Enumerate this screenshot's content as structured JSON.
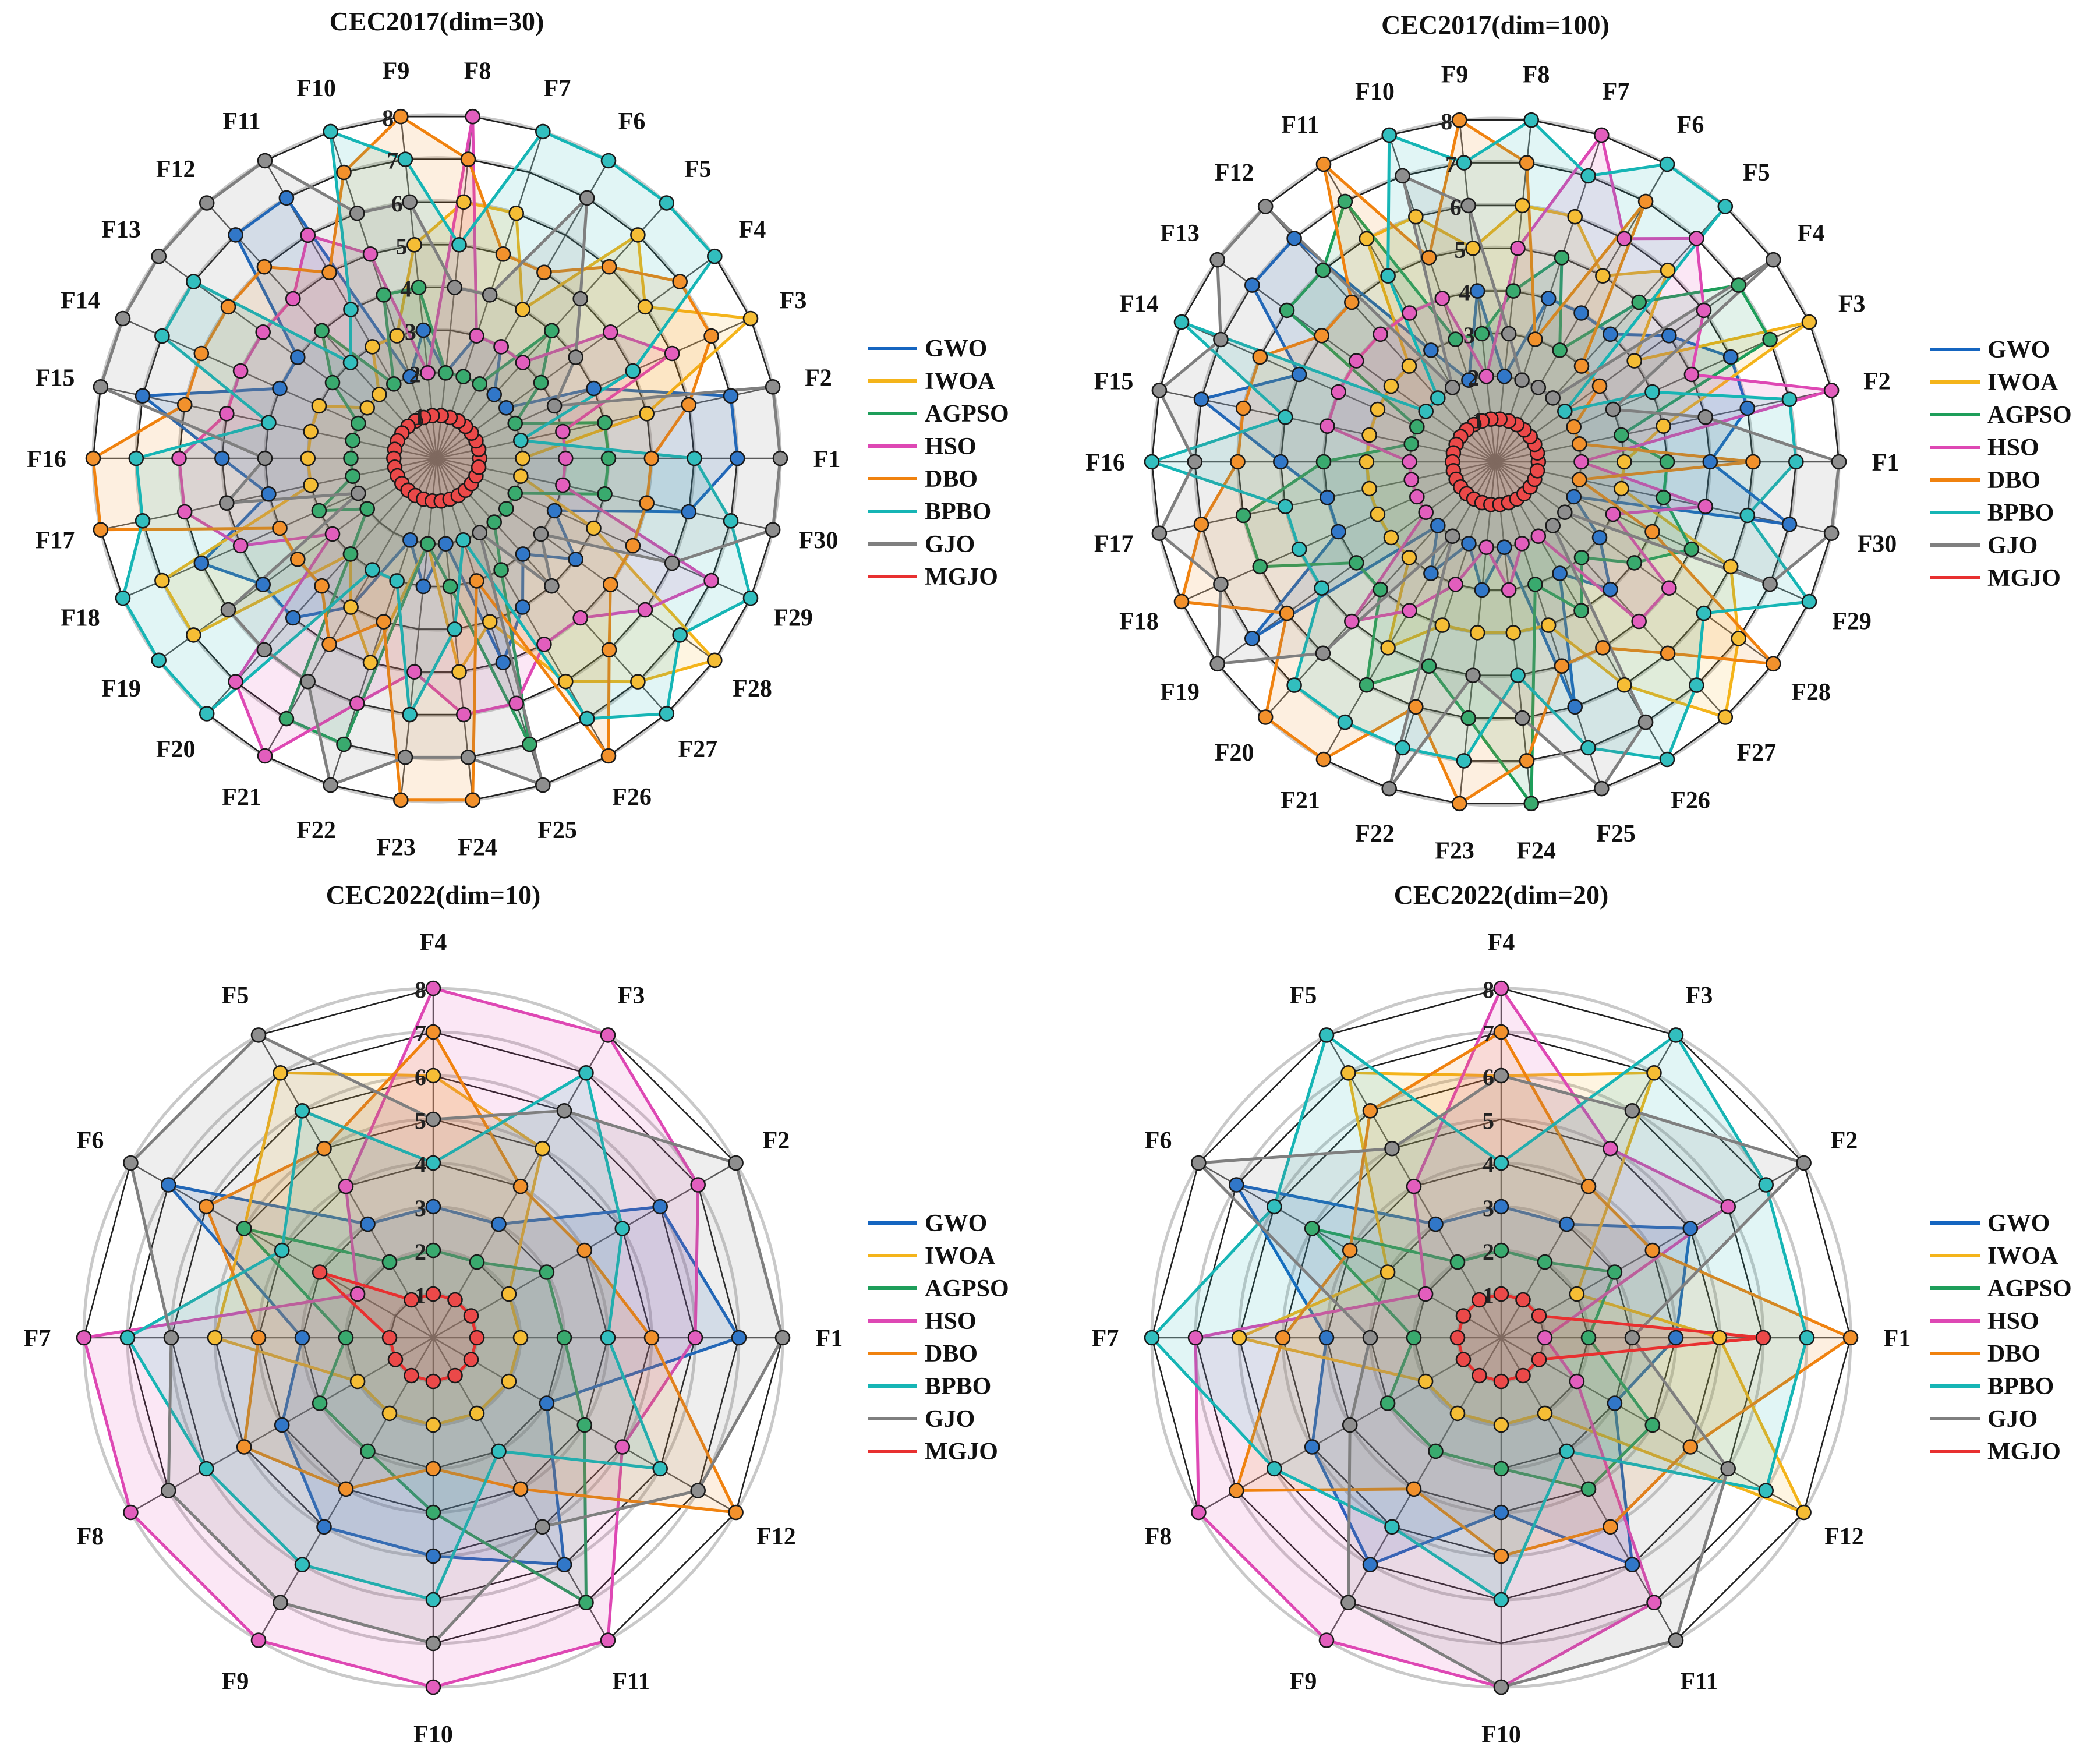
{
  "colors": {
    "GWO": "#1565c0",
    "IWOA": "#f4b41a",
    "AGPSO": "#1e9e5a",
    "HSO": "#de48b4",
    "DBO": "#f0820f",
    "BPBO": "#16b5b5",
    "GJO": "#7f7f7f",
    "MGJO": "#e83030"
  },
  "chart_data": [
    {
      "type": "radar",
      "title": "CEC2017(dim=30)",
      "rlim": [
        0,
        8
      ],
      "radial_ticks": [
        "1",
        "2",
        "3",
        "4",
        "5",
        "6",
        "7",
        "8"
      ],
      "categories": [
        "F1",
        "F2",
        "F3",
        "F4",
        "F5",
        "F6",
        "F7",
        "F8",
        "F9",
        "F10",
        "F11",
        "F12",
        "F13",
        "F14",
        "F15",
        "F16",
        "F17",
        "F18",
        "F19",
        "F20",
        "F21",
        "F22",
        "F23",
        "F24",
        "F25",
        "F26",
        "F27",
        "F28",
        "F29",
        "F30"
      ],
      "legend": [
        "GWO",
        "IWOA",
        "AGPSO",
        "HSO",
        "DBO",
        "BPBO",
        "GJO",
        "MGJO"
      ],
      "legend_position": "right",
      "series": [
        {
          "name": "GWO",
          "values": [
            7,
            7,
            4,
            2,
            2,
            3,
            3,
            2,
            3,
            2,
            7,
            7,
            4,
            4,
            7,
            5,
            4,
            6,
            5,
            5,
            4,
            2,
            3,
            2,
            5,
            4,
            3,
            4,
            3,
            6
          ]
        },
        {
          "name": "IWOA",
          "values": [
            2,
            5,
            8,
            6,
            7,
            4,
            6,
            6,
            5,
            3,
            3,
            2,
            2,
            3,
            3,
            3,
            3,
            7,
            7,
            3,
            4,
            5,
            2,
            5,
            4,
            6,
            7,
            8,
            4,
            2
          ]
        },
        {
          "name": "AGPSO",
          "values": [
            4,
            4,
            2,
            3,
            4,
            2,
            2,
            2,
            4,
            4,
            2,
            4,
            3,
            2,
            2,
            2,
            2,
            3,
            2,
            3,
            7,
            7,
            2,
            3,
            7,
            3,
            2,
            2,
            2,
            4
          ]
        },
        {
          "name": "HSO",
          "values": [
            3,
            3,
            6,
            5,
            3,
            3,
            3,
            8,
            2,
            5,
            6,
            5,
            5,
            5,
            5,
            6,
            6,
            5,
            3,
            7,
            8,
            6,
            5,
            6,
            6,
            5,
            5,
            6,
            7,
            3
          ]
        },
        {
          "name": "DBO",
          "values": [
            5,
            6,
            7,
            7,
            6,
            5,
            5,
            7,
            8,
            7,
            5,
            6,
            6,
            6,
            6,
            8,
            8,
            4,
            4,
            4,
            5,
            4,
            8,
            8,
            3,
            8,
            6,
            5,
            5,
            5
          ]
        },
        {
          "name": "BPBO",
          "values": [
            6,
            2,
            5,
            8,
            8,
            8,
            8,
            5,
            7,
            8,
            4,
            3,
            7,
            7,
            4,
            7,
            7,
            8,
            8,
            8,
            3,
            3,
            6,
            4,
            2,
            7,
            8,
            7,
            8,
            7
          ]
        },
        {
          "name": "GJO",
          "values": [
            8,
            8,
            3,
            4,
            5,
            7,
            4,
            4,
            6,
            6,
            8,
            8,
            8,
            8,
            8,
            4,
            5,
            2,
            6,
            6,
            6,
            8,
            7,
            7,
            8,
            2,
            4,
            3,
            6,
            8
          ]
        },
        {
          "name": "MGJO",
          "values": [
            1,
            1,
            1,
            1,
            1,
            1,
            1,
            1,
            1,
            1,
            1,
            1,
            1,
            1,
            1,
            1,
            1,
            1,
            1,
            1,
            1,
            1,
            1,
            1,
            1,
            1,
            1,
            1,
            1,
            1
          ]
        }
      ]
    },
    {
      "type": "radar",
      "title": "CEC2017(dim=100)",
      "rlim": [
        0,
        8
      ],
      "radial_ticks": [
        "1",
        "2",
        "3",
        "4",
        "5",
        "6",
        "7",
        "8"
      ],
      "categories": [
        "F1",
        "F2",
        "F3",
        "F4",
        "F5",
        "F6",
        "F7",
        "F8",
        "F9",
        "F10",
        "F11",
        "F12",
        "F13",
        "F14",
        "F15",
        "F16",
        "F17",
        "F18",
        "F19",
        "F20",
        "F21",
        "F22",
        "F23",
        "F24",
        "F25",
        "F26",
        "F27",
        "F28",
        "F29",
        "F30"
      ],
      "legend": [
        "GWO",
        "IWOA",
        "AGPSO",
        "HSO",
        "DBO",
        "BPBO",
        "GJO",
        "MGJO"
      ],
      "legend_position": "right",
      "series": [
        {
          "name": "GWO",
          "values": [
            5,
            6,
            6,
            5,
            4,
            4,
            4,
            2,
            4,
            2,
            3,
            7,
            7,
            5,
            7,
            5,
            4,
            4,
            7,
            2,
            3,
            2,
            3,
            2,
            6,
            3,
            4,
            3,
            2,
            7
          ]
        },
        {
          "name": "IWOA",
          "values": [
            3,
            4,
            8,
            4,
            6,
            5,
            6,
            6,
            5,
            6,
            6,
            3,
            3,
            3,
            3,
            3,
            3,
            3,
            3,
            3,
            5,
            4,
            4,
            4,
            4,
            6,
            8,
            7,
            6,
            3
          ]
        },
        {
          "name": "AGPSO",
          "values": [
            4,
            3,
            7,
            7,
            5,
            3,
            5,
            4,
            3,
            3,
            7,
            6,
            6,
            2,
            2,
            4,
            6,
            6,
            4,
            4,
            6,
            5,
            6,
            8,
            3,
            4,
            3,
            4,
            5,
            4
          ]
        },
        {
          "name": "HSO",
          "values": [
            2,
            8,
            5,
            6,
            7,
            6,
            8,
            5,
            2,
            4,
            4,
            4,
            4,
            4,
            4,
            2,
            2,
            2,
            2,
            5,
            4,
            3,
            2,
            3,
            2,
            2,
            5,
            5,
            3,
            5
          ]
        },
        {
          "name": "DBO",
          "values": [
            6,
            2,
            2,
            3,
            3,
            7,
            3,
            7,
            8,
            5,
            8,
            5,
            5,
            6,
            6,
            6,
            7,
            8,
            6,
            8,
            8,
            6,
            8,
            7,
            5,
            5,
            6,
            8,
            4,
            2
          ]
        },
        {
          "name": "BPBO",
          "values": [
            7,
            7,
            4,
            2,
            8,
            8,
            7,
            8,
            7,
            8,
            5,
            2,
            2,
            8,
            5,
            8,
            5,
            5,
            5,
            7,
            7,
            7,
            7,
            5,
            7,
            8,
            7,
            6,
            8,
            6
          ]
        },
        {
          "name": "GJO",
          "values": [
            8,
            5,
            3,
            8,
            2,
            2,
            2,
            3,
            6,
            7,
            2,
            8,
            8,
            7,
            8,
            7,
            8,
            7,
            8,
            6,
            2,
            8,
            5,
            6,
            8,
            7,
            2,
            2,
            7,
            8
          ]
        },
        {
          "name": "MGJO",
          "values": [
            1,
            1,
            1,
            1,
            1,
            1,
            1,
            1,
            1,
            1,
            1,
            1,
            1,
            1,
            1,
            1,
            1,
            1,
            1,
            1,
            1,
            1,
            1,
            1,
            1,
            1,
            1,
            1,
            1,
            1
          ]
        }
      ]
    },
    {
      "type": "radar",
      "title": "CEC2022(dim=10)",
      "rlim": [
        0,
        8
      ],
      "radial_ticks": [
        "1",
        "2",
        "3",
        "4",
        "5",
        "6",
        "7",
        "8"
      ],
      "categories": [
        "F1",
        "F2",
        "F3",
        "F4",
        "F5",
        "F6",
        "F7",
        "F8",
        "F9",
        "F10",
        "F11",
        "F12"
      ],
      "legend": [
        "GWO",
        "IWOA",
        "AGPSO",
        "HSO",
        "DBO",
        "BPBO",
        "GJO",
        "MGJO"
      ],
      "legend_position": "right",
      "series": [
        {
          "name": "GWO",
          "values": [
            7,
            6,
            3,
            3,
            3,
            7,
            3,
            4,
            5,
            5,
            6,
            3
          ]
        },
        {
          "name": "IWOA",
          "values": [
            2,
            2,
            5,
            6,
            7,
            5,
            5,
            2,
            2,
            2,
            2,
            2
          ]
        },
        {
          "name": "AGPSO",
          "values": [
            3,
            3,
            2,
            2,
            2,
            5,
            2,
            3,
            3,
            4,
            7,
            4
          ]
        },
        {
          "name": "HSO",
          "values": [
            6,
            7,
            8,
            8,
            4,
            2,
            8,
            8,
            8,
            8,
            8,
            5
          ]
        },
        {
          "name": "DBO",
          "values": [
            5,
            4,
            4,
            7,
            5,
            6,
            4,
            5,
            4,
            3,
            4,
            8
          ]
        },
        {
          "name": "BPBO",
          "values": [
            4,
            5,
            7,
            4,
            6,
            4,
            7,
            6,
            6,
            6,
            3,
            6
          ]
        },
        {
          "name": "GJO",
          "values": [
            8,
            8,
            6,
            5,
            8,
            8,
            6,
            7,
            7,
            7,
            5,
            7
          ]
        },
        {
          "name": "MGJO",
          "values": [
            1,
            1,
            1,
            1,
            1,
            3,
            1,
            1,
            1,
            1,
            1,
            1
          ]
        }
      ]
    },
    {
      "type": "radar",
      "title": "CEC2022(dim=20)",
      "rlim": [
        0,
        8
      ],
      "radial_ticks": [
        "1",
        "2",
        "3",
        "4",
        "5",
        "6",
        "7",
        "8"
      ],
      "categories": [
        "F1",
        "F2",
        "F3",
        "F4",
        "F5",
        "F6",
        "F7",
        "F8",
        "F9",
        "F10",
        "F11",
        "F12"
      ],
      "legend": [
        "GWO",
        "IWOA",
        "AGPSO",
        "HSO",
        "DBO",
        "BPBO",
        "GJO",
        "MGJO"
      ],
      "legend_position": "right",
      "series": [
        {
          "name": "GWO",
          "values": [
            4,
            5,
            3,
            3,
            3,
            7,
            4,
            5,
            6,
            4,
            6,
            3
          ]
        },
        {
          "name": "IWOA",
          "values": [
            5,
            2,
            7,
            6,
            7,
            3,
            6,
            2,
            2,
            2,
            2,
            8
          ]
        },
        {
          "name": "AGPSO",
          "values": [
            2,
            3,
            2,
            2,
            2,
            5,
            2,
            3,
            3,
            3,
            4,
            4
          ]
        },
        {
          "name": "HSO",
          "values": [
            1,
            6,
            5,
            8,
            4,
            2,
            7,
            8,
            8,
            8,
            7,
            2
          ]
        },
        {
          "name": "DBO",
          "values": [
            8,
            4,
            4,
            7,
            6,
            4,
            5,
            7,
            4,
            5,
            5,
            5
          ]
        },
        {
          "name": "BPBO",
          "values": [
            7,
            7,
            8,
            4,
            8,
            6,
            8,
            6,
            5,
            6,
            3,
            7
          ]
        },
        {
          "name": "GJO",
          "values": [
            3,
            8,
            6,
            6,
            5,
            8,
            3,
            4,
            7,
            8,
            8,
            6
          ]
        },
        {
          "name": "MGJO",
          "values": [
            6,
            1,
            1,
            1,
            1,
            1,
            1,
            1,
            1,
            1,
            1,
            1
          ]
        }
      ]
    }
  ]
}
